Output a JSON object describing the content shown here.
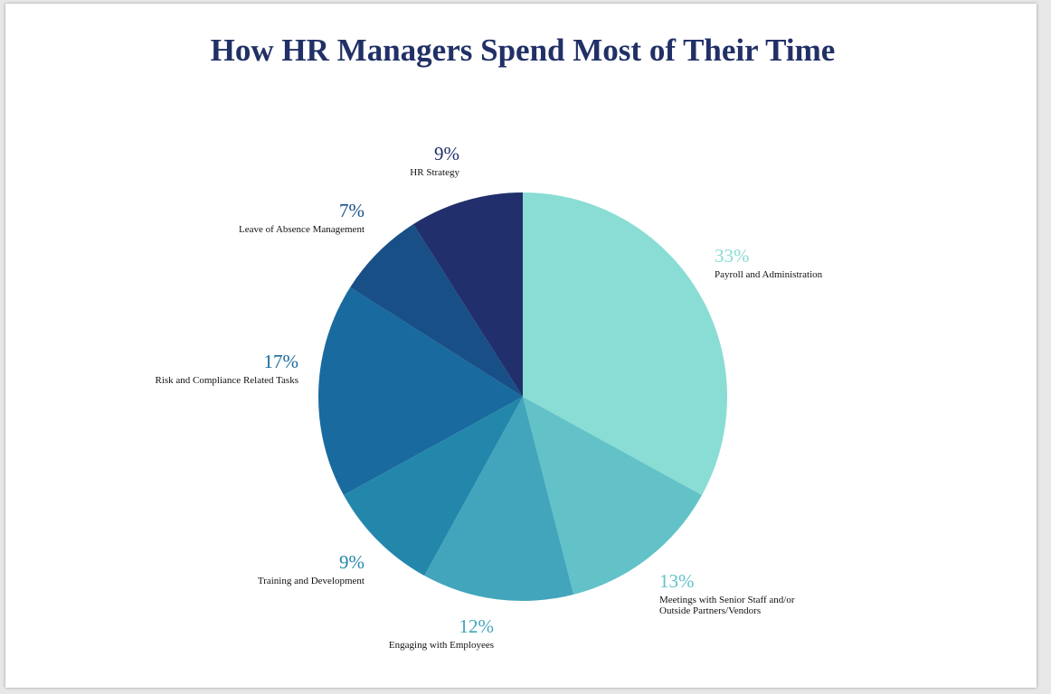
{
  "chart_data": {
    "type": "pie",
    "title": "How HR Managers Spend Most of Their Time",
    "slices": [
      {
        "label": "Payroll and Administration",
        "value": 33,
        "display": "33%",
        "color": "#89ddd4"
      },
      {
        "label": "Meetings with Senior Staff and/or\nOutside Partners/Vendors",
        "value": 13,
        "display": "13%",
        "color": "#62c2c8"
      },
      {
        "label": "Engaging with Employees",
        "value": 12,
        "display": "12%",
        "color": "#42a5bb"
      },
      {
        "label": "Training and Development",
        "value": 9,
        "display": "9%",
        "color": "#2387ab"
      },
      {
        "label": "Risk and Compliance Related Tasks",
        "value": 17,
        "display": "17%",
        "color": "#196a9e"
      },
      {
        "label": "Leave of Absence Management",
        "value": 7,
        "display": "7%",
        "color": "#184f87"
      },
      {
        "label": "HR Strategy",
        "value": 9,
        "display": "9%",
        "color": "#21306c"
      }
    ],
    "start_angle_deg": 0,
    "direction": "clockwise",
    "legend": "none"
  }
}
